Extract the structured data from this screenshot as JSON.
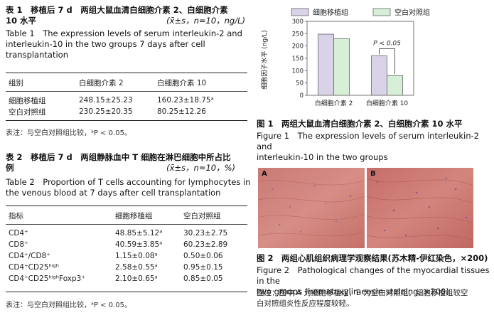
{
  "table1": {
    "title_cn": "表 1　移植后 7 d　两组大鼠血清白细胞介素 2、白细胞介素 10 水平",
    "title_cn_line1": "表 1　移植后 7 d　两组大鼠血清白细胞介素 2、白细胞介素",
    "title_cn_line2": "10 水平",
    "title_stats": "(x̄±s，n=10，ng/L)",
    "title_en_line1": "Table 1　The expression levels of serum interleukin-2 and",
    "title_en_line2": "interleukin-10 in the two groups 7 days after cell",
    "title_en_line3": "transplantation",
    "headers": [
      "组别",
      "白细胞介素 2",
      "白细胞介素 10"
    ],
    "rows": [
      [
        "细胞移植组",
        "248.15±25.23",
        "160.23±18.75ᵃ"
      ],
      [
        "空白对照组",
        "230.25±20.35",
        "80.25±12.26"
      ]
    ],
    "note": "表注：与空白对照组比较，ᵃP < 0.05。"
  },
  "table2": {
    "title_cn_line1": "表 2　移植后 7 d　两组静脉血中 T 细胞在淋巴细胞中所占比",
    "title_cn_line2": "例",
    "title_stats": "(x̄±s，n=10，%)",
    "title_en_line1": "Table 2　Proportion of T cells accounting for lymphocytes in",
    "title_en_line2": "the venous blood at 7 days after cell transplantation",
    "headers": [
      "指标",
      "细胞移植组",
      "空白对照组"
    ],
    "rows": [
      [
        "CD4⁺",
        "48.85±5.12ᵃ",
        "30.23±2.75"
      ],
      [
        "CD8⁺",
        "40.59±3.85ᵃ",
        "60.23±2.89"
      ],
      [
        "CD4⁺/CD8⁺",
        "1.15±0.08ᵃ",
        "0.50±0.06"
      ],
      [
        "CD4⁺CD25ʰⁱᵍʰ",
        "2.58±0.55ᵃ",
        "0.95±0.15"
      ],
      [
        "CD4⁺CD25ʰⁱᵍʰFoxp3⁺",
        "2.10±0.65ᵃ",
        "0.85±0.05"
      ]
    ],
    "note": "表注：与空白对照组比较，ᵃP < 0.05。"
  },
  "figure1": {
    "caption_cn": "图 1　两组大鼠血清白细胞介素 2、白细胞介素 10 水平",
    "caption_en_line1": "Figure 1　The expression levels of serum interleukin-2 and",
    "caption_en_line2": "interleukin-10 in the two groups"
  },
  "figure2": {
    "caption_cn": "图 2　两组心肌组织病理学观察结果(苏木精-伊红染色，×200)",
    "caption_en_line1": "Figure 2　Pathological changes of the myocardial tissues in the",
    "caption_en_line2": "two groups (hematoxylin-eosin staining, ×200)",
    "note_line1": "图注：图中 A 为细胞移植组，B 为空白对照组。细胞移植组较空",
    "note_line2": "白对照组炎性反应程度较轻。",
    "panel_a": "A",
    "panel_b": "B"
  },
  "chart_data": {
    "type": "bar",
    "categories": [
      "白细胞介素 2",
      "白细胞介素 10"
    ],
    "series": [
      {
        "name": "细胞移植组",
        "values": [
          248,
          160
        ],
        "color": "#d9d2e9"
      },
      {
        "name": "空白对照组",
        "values": [
          230,
          80
        ],
        "color": "#d6efd6"
      }
    ],
    "ylabel": "细胞因子水平 (ng/L)",
    "ylim": [
      0,
      300
    ],
    "yticks": [
      0,
      50,
      100,
      150,
      200,
      250,
      300
    ],
    "annotation": "P < 0.05",
    "legend": "top"
  }
}
